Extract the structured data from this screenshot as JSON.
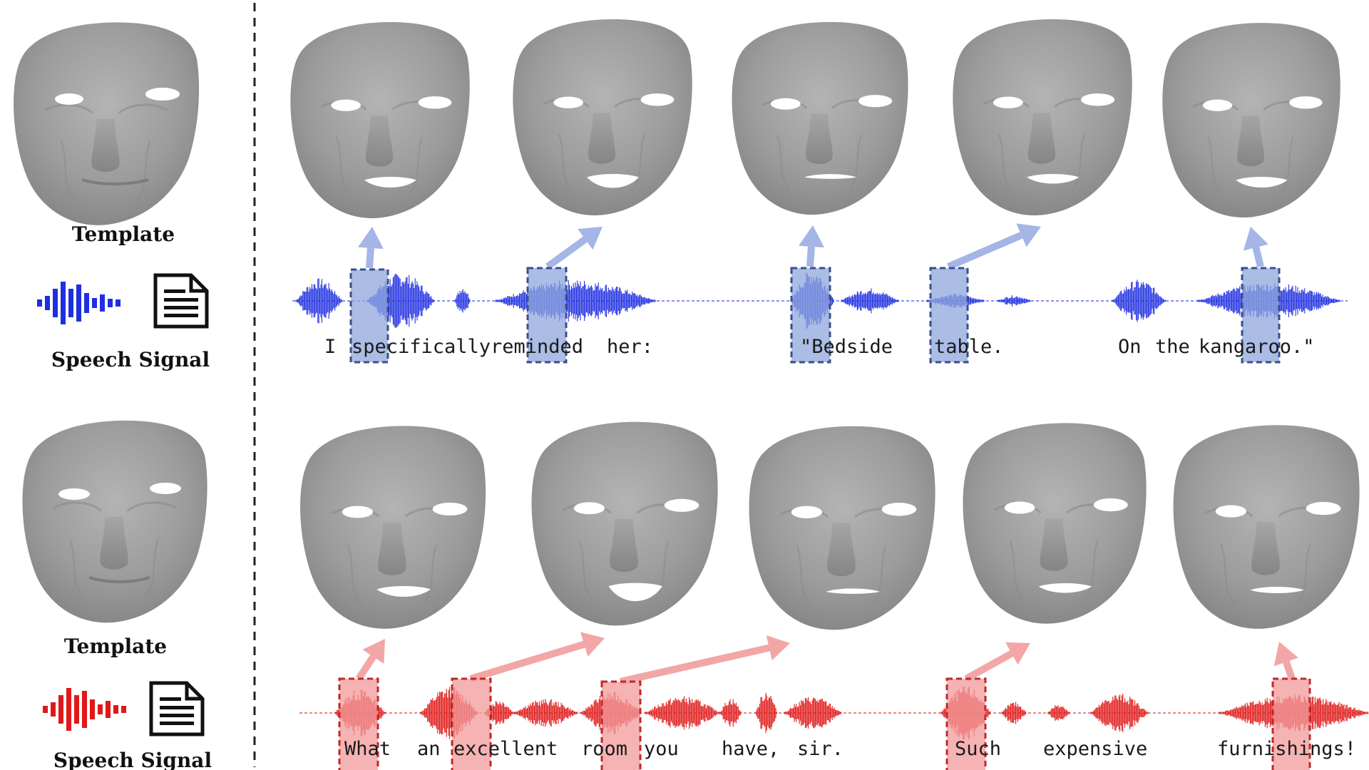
{
  "left_panel": {
    "top": {
      "template_label": "Template",
      "signal_label": "Speech Signal",
      "audio_icon": "waveform-icon",
      "text_icon": "document-icon",
      "color": "#1f2fe0"
    },
    "bottom": {
      "template_label": "Template",
      "signal_label": "Speech Signal",
      "audio_icon": "waveform-icon",
      "text_icon": "document-icon",
      "color": "#e01818"
    }
  },
  "rows": [
    {
      "id": "top",
      "color": "#1f2fe0",
      "highlight_fill": "#8fa5dc",
      "highlight_stroke": "#3b4f8a",
      "arrow_color": "#a4b5e6",
      "words": [
        {
          "text": "I"
        },
        {
          "text": "specifically"
        },
        {
          "text": "reminded"
        },
        {
          "text": "her:"
        },
        {
          "text": "\"Bedside"
        },
        {
          "text": "table."
        },
        {
          "text": "On"
        },
        {
          "text": "the"
        },
        {
          "text": "kangaroo.\""
        }
      ],
      "faces": 5
    },
    {
      "id": "bottom",
      "color": "#e01818",
      "highlight_fill": "#f29a9a",
      "highlight_stroke": "#c02828",
      "arrow_color": "#f2a6a6",
      "words": [
        {
          "text": "What"
        },
        {
          "text": "an"
        },
        {
          "text": "excellent"
        },
        {
          "text": "room"
        },
        {
          "text": "you"
        },
        {
          "text": "have,"
        },
        {
          "text": "sir."
        },
        {
          "text": "Such"
        },
        {
          "text": "expensive"
        },
        {
          "text": "furnishings!"
        }
      ],
      "faces": 5
    }
  ]
}
